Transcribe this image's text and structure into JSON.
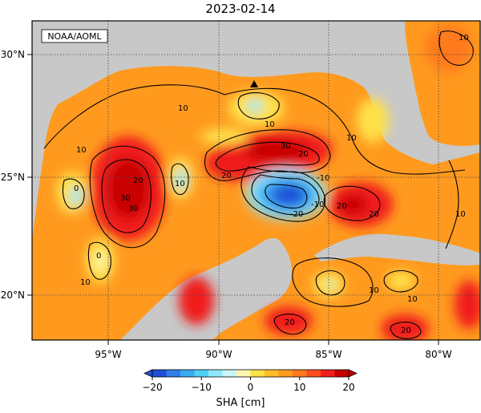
{
  "title": "2023-02-14",
  "credit": "NOAA/AOML",
  "variable": "SHA",
  "colorbar": {
    "label": "SHA [cm]",
    "min": -20,
    "max": 20,
    "ticks": [
      "-20",
      "-10",
      "0",
      "10",
      "20"
    ],
    "colors": [
      "#1f4fd8",
      "#2f7fe8",
      "#3aaaf0",
      "#4fd0f5",
      "#8fe8f8",
      "#c8f6fb",
      "#fff7b0",
      "#ffe14a",
      "#ffbe25",
      "#ff9a1f",
      "#ff7a1f",
      "#ff4e1e",
      "#f01e1e",
      "#c80000"
    ]
  },
  "axes": {
    "lon_ticks": [
      "95°W",
      "90°W",
      "85°W",
      "80°W"
    ],
    "lat_ticks": [
      "30°N",
      "25°N",
      "20°N"
    ],
    "lon_range": [
      -98,
      -78
    ],
    "lat_range": [
      18,
      31
    ]
  },
  "contour_labels": [
    "10",
    "10",
    "10",
    "10",
    "10",
    "20",
    "20",
    "20",
    "20",
    "30",
    "30",
    "-10",
    "-20",
    "-10",
    "0",
    "0",
    "10",
    "20",
    "30",
    "10",
    "10",
    "20",
    "10",
    "10",
    "20"
  ],
  "colors": {
    "land": "#c8c8c8",
    "background": "#ff9a1f",
    "contour": "#000000",
    "marker": "#000000"
  },
  "marker": {
    "symbol": "triangle",
    "lon": -88.4,
    "lat": 28.8
  }
}
